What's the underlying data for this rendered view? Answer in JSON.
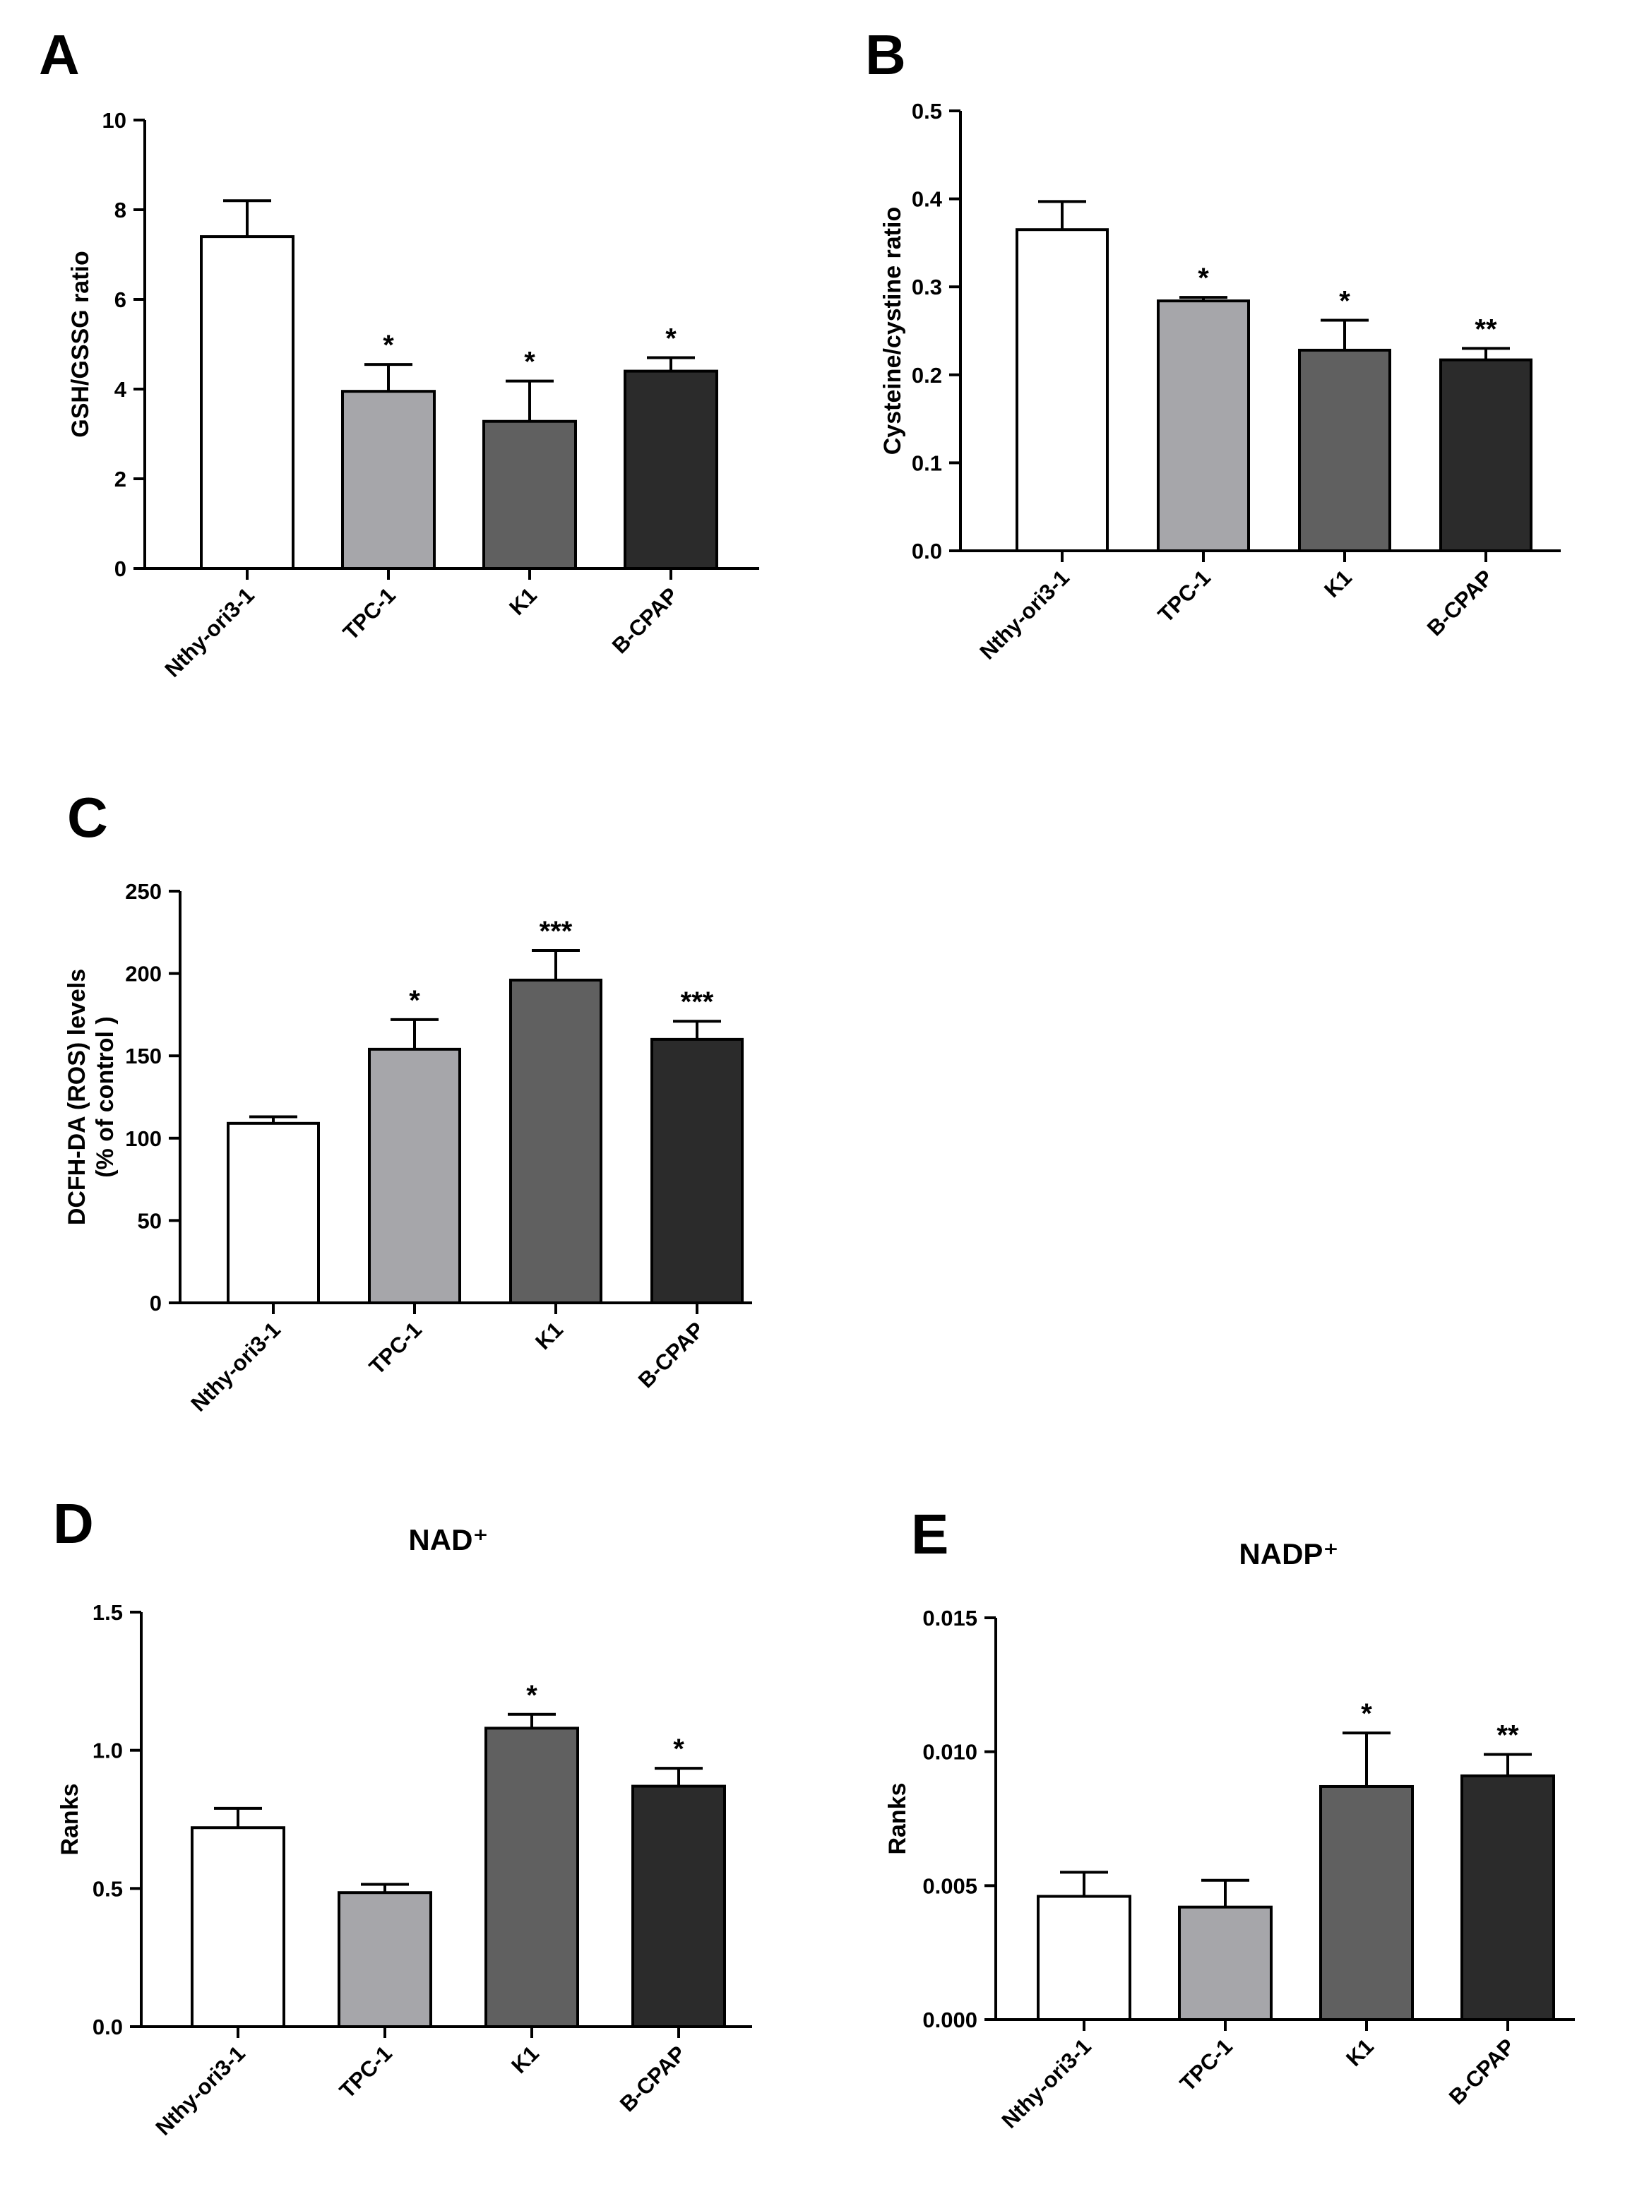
{
  "chart_data": [
    {
      "panel": "A",
      "type": "bar",
      "title": "",
      "ylabel": "GSH/GSSG ratio",
      "ylabel_lines": [
        "GSH/GSSG ratio"
      ],
      "categories": [
        "Nthy-ori3-1",
        "TPC-1",
        "K1",
        "B-CPAP"
      ],
      "values": [
        7.4,
        3.95,
        3.28,
        4.4
      ],
      "errors": [
        0.8,
        0.6,
        0.9,
        0.3
      ],
      "significance": [
        "",
        "*",
        "*",
        "*"
      ],
      "ylim": [
        0,
        10
      ],
      "yticks": [
        "0",
        "2",
        "4",
        "6",
        "8",
        "10"
      ],
      "ytick_values": [
        0,
        2,
        4,
        6,
        8,
        10
      ],
      "colors": [
        "#ffffff",
        "#a6a6aa",
        "#606060",
        "#2b2b2b"
      ]
    },
    {
      "panel": "B",
      "type": "bar",
      "title": "",
      "ylabel": "Cysteine/cystine ratio",
      "ylabel_lines": [
        "Cysteine/cystine ratio"
      ],
      "categories": [
        "Nthy-ori3-1",
        "TPC-1",
        "K1",
        "B-CPAP"
      ],
      "values": [
        0.365,
        0.284,
        0.228,
        0.217
      ],
      "errors": [
        0.032,
        0.004,
        0.034,
        0.013
      ],
      "significance": [
        "",
        "*",
        "*",
        "**"
      ],
      "ylim": [
        0,
        0.5
      ],
      "yticks": [
        "0.0",
        "0.1",
        "0.2",
        "0.3",
        "0.4",
        "0.5"
      ],
      "ytick_values": [
        0,
        0.1,
        0.2,
        0.3,
        0.4,
        0.5
      ],
      "colors": [
        "#ffffff",
        "#a6a6aa",
        "#606060",
        "#2b2b2b"
      ]
    },
    {
      "panel": "C",
      "type": "bar",
      "title": "",
      "ylabel": "DCFH-DA (ROS) levels (% of control )",
      "ylabel_lines": [
        "DCFH-DA (ROS) levels",
        "(% of control )"
      ],
      "categories": [
        "Nthy-ori3-1",
        "TPC-1",
        "K1",
        "B-CPAP"
      ],
      "values": [
        109,
        154,
        196,
        160
      ],
      "errors": [
        4,
        18,
        18,
        11
      ],
      "significance": [
        "",
        "*",
        "***",
        "***"
      ],
      "ylim": [
        0,
        250
      ],
      "yticks": [
        "0",
        "50",
        "100",
        "150",
        "200",
        "250"
      ],
      "ytick_values": [
        0,
        50,
        100,
        150,
        200,
        250
      ],
      "colors": [
        "#ffffff",
        "#a6a6aa",
        "#606060",
        "#2b2b2b"
      ]
    },
    {
      "panel": "D",
      "type": "bar",
      "title": "NAD⁺",
      "ylabel": "Ranks",
      "ylabel_lines": [
        "Ranks"
      ],
      "categories": [
        "Nthy-ori3-1",
        "TPC-1",
        "K1",
        "B-CPAP"
      ],
      "values": [
        0.72,
        0.485,
        1.08,
        0.87
      ],
      "errors": [
        0.07,
        0.03,
        0.05,
        0.065
      ],
      "significance": [
        "",
        "",
        "*",
        "*"
      ],
      "ylim": [
        0,
        1.5
      ],
      "yticks": [
        "0.0",
        "0.5",
        "1.0",
        "1.5"
      ],
      "ytick_values": [
        0,
        0.5,
        1.0,
        1.5
      ],
      "colors": [
        "#ffffff",
        "#a6a6aa",
        "#606060",
        "#2b2b2b"
      ]
    },
    {
      "panel": "E",
      "type": "bar",
      "title": "NADP⁺",
      "ylabel": "Ranks",
      "ylabel_lines": [
        "Ranks"
      ],
      "categories": [
        "Nthy-ori3-1",
        "TPC-1",
        "K1",
        "B-CPAP"
      ],
      "values": [
        0.0046,
        0.0042,
        0.0087,
        0.0091
      ],
      "errors": [
        0.0009,
        0.001,
        0.002,
        0.0008
      ],
      "significance": [
        "",
        "",
        "*",
        "**"
      ],
      "ylim": [
        0,
        0.015
      ],
      "yticks": [
        "0.000",
        "0.005",
        "0.010",
        "0.015"
      ],
      "ytick_values": [
        0,
        0.005,
        0.01,
        0.015
      ],
      "colors": [
        "#ffffff",
        "#a6a6aa",
        "#606060",
        "#2b2b2b"
      ]
    }
  ]
}
